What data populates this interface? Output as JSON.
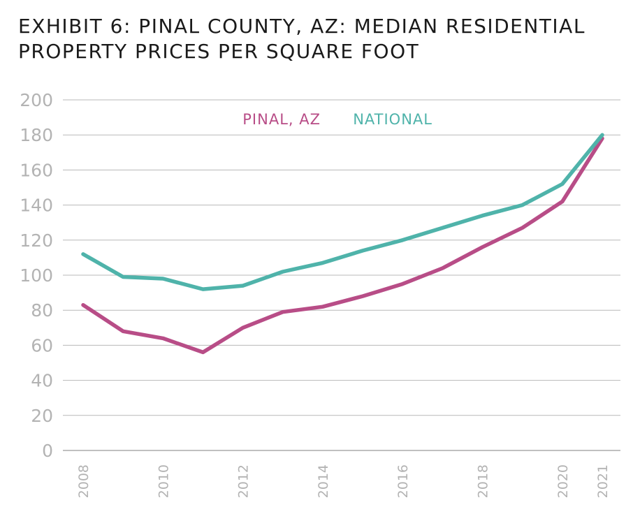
{
  "title_line1": "EXHIBIT 6: PINAL COUNTY, AZ: MEDIAN RESIDENTIAL",
  "title_line2": "PROPERTY PRICES PER SQUARE FOOT",
  "chart_data": {
    "type": "line",
    "title": "EXHIBIT 6: PINAL COUNTY, AZ: MEDIAN RESIDENTIAL PROPERTY PRICES PER SQUARE FOOT",
    "x": [
      2008,
      2009,
      2010,
      2011,
      2012,
      2013,
      2014,
      2015,
      2016,
      2017,
      2018,
      2019,
      2020,
      2021
    ],
    "x_tick_labels": [
      "2008",
      "2010",
      "2012",
      "2014",
      "2016",
      "2018",
      "2020",
      "2021"
    ],
    "y_tick_labels": [
      "0",
      "20",
      "40",
      "60",
      "80",
      "100",
      "120",
      "140",
      "160",
      "180",
      "200"
    ],
    "ylim": [
      0,
      200
    ],
    "grid": true,
    "legend_position": "top",
    "series": [
      {
        "name": "PINAL, AZ",
        "color": "#b84d87",
        "values": [
          83,
          68,
          64,
          56,
          70,
          79,
          82,
          88,
          95,
          104,
          116,
          127,
          142,
          178
        ]
      },
      {
        "name": "NATIONAL",
        "color": "#4fb3aa",
        "values": [
          112,
          99,
          98,
          92,
          94,
          102,
          107,
          114,
          120,
          127,
          134,
          140,
          152,
          180
        ]
      }
    ]
  }
}
